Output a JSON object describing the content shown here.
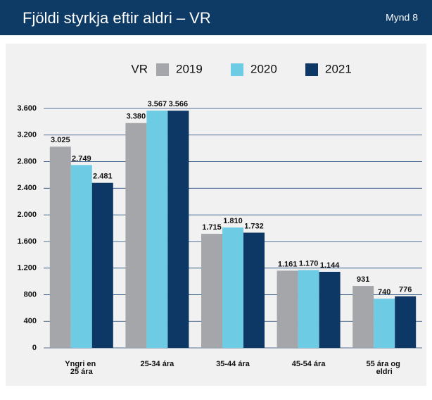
{
  "chart_data": {
    "type": "bar",
    "title": "Fjöldi styrkja eftir aldri – VR",
    "figure_label": "Mynd 8",
    "legend_title": "VR",
    "categories": [
      "Yngri en 25 ára",
      "25-34 ára",
      "35-44 ára",
      "45-54 ára",
      "55 ára og eldri"
    ],
    "series": [
      {
        "name": "2019",
        "color": "#a4a6a9",
        "values": [
          3025,
          3380,
          1715,
          1161,
          931
        ],
        "value_labels": [
          "3.025",
          "3.380",
          "1.715",
          "1.161",
          "931"
        ]
      },
      {
        "name": "2020",
        "color": "#6dcbe3",
        "values": [
          2749,
          3567,
          1810,
          1170,
          740
        ],
        "value_labels": [
          "2.749",
          "3.567",
          "1.810",
          "1.170",
          "740"
        ]
      },
      {
        "name": "2021",
        "color": "#0d3866",
        "values": [
          2481,
          3566,
          1732,
          1144,
          776
        ],
        "value_labels": [
          "2.481",
          "3.566",
          "1.732",
          "1.144",
          "776"
        ]
      }
    ],
    "ylim": [
      0,
      3600
    ],
    "yticks": [
      0,
      400,
      800,
      {
        "value": 1200,
        "label": "1.200"
      },
      {
        "value": 1600,
        "label": "1.600"
      },
      {
        "value": 2000,
        "label": "2.000"
      },
      {
        "value": 2400,
        "label": "2.400"
      },
      {
        "value": 2800,
        "label": "2.800"
      },
      {
        "value": 3200,
        "label": "3.200"
      },
      {
        "value": 3600,
        "label": "3.600"
      }
    ],
    "grid": true
  }
}
